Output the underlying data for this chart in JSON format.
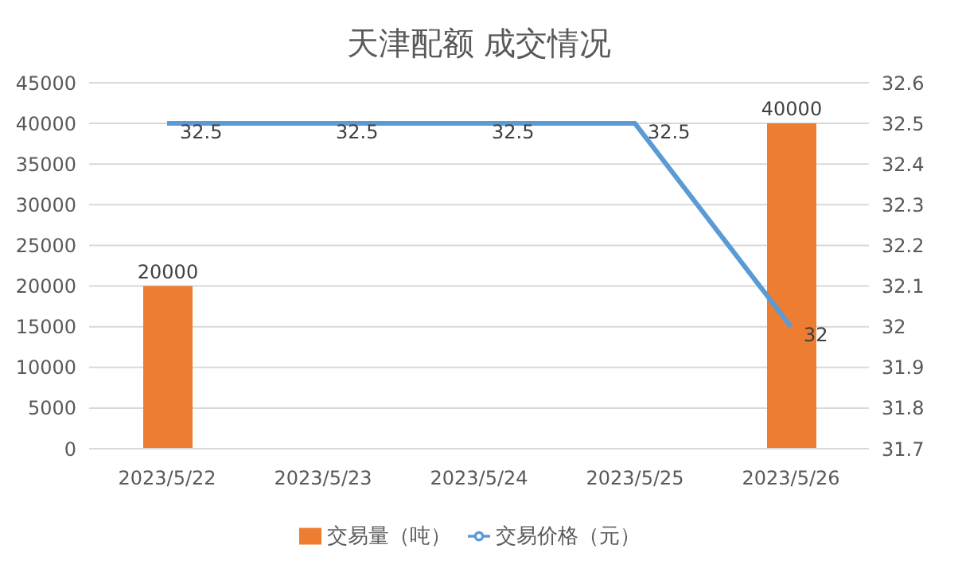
{
  "chart_data": {
    "type": "bar",
    "title": "天津配额 成交情况",
    "categories": [
      "2023/5/22",
      "2023/5/23",
      "2023/5/24",
      "2023/5/25",
      "2023/5/26"
    ],
    "series": [
      {
        "name": "交易量（吨）",
        "color": "#ed7d31",
        "values": [
          20000,
          null,
          null,
          null,
          40000
        ]
      },
      {
        "name": "交易价格（元）",
        "type": "line",
        "axis": "y2",
        "color": "#5b9bd5",
        "values": [
          32.5,
          32.5,
          32.5,
          32.5,
          32
        ]
      }
    ],
    "ylim": [
      0,
      45000
    ],
    "yticks": [
      0,
      5000,
      10000,
      15000,
      20000,
      25000,
      30000,
      35000,
      40000,
      45000
    ],
    "y2lim": [
      31.7,
      32.6
    ],
    "y2ticks": [
      31.7,
      31.8,
      31.9,
      32,
      32.1,
      32.2,
      32.3,
      32.4,
      32.5,
      32.6
    ],
    "grid": "y",
    "legend": "bottom",
    "data_labels": true,
    "marker": "none",
    "line_style": "solid"
  }
}
